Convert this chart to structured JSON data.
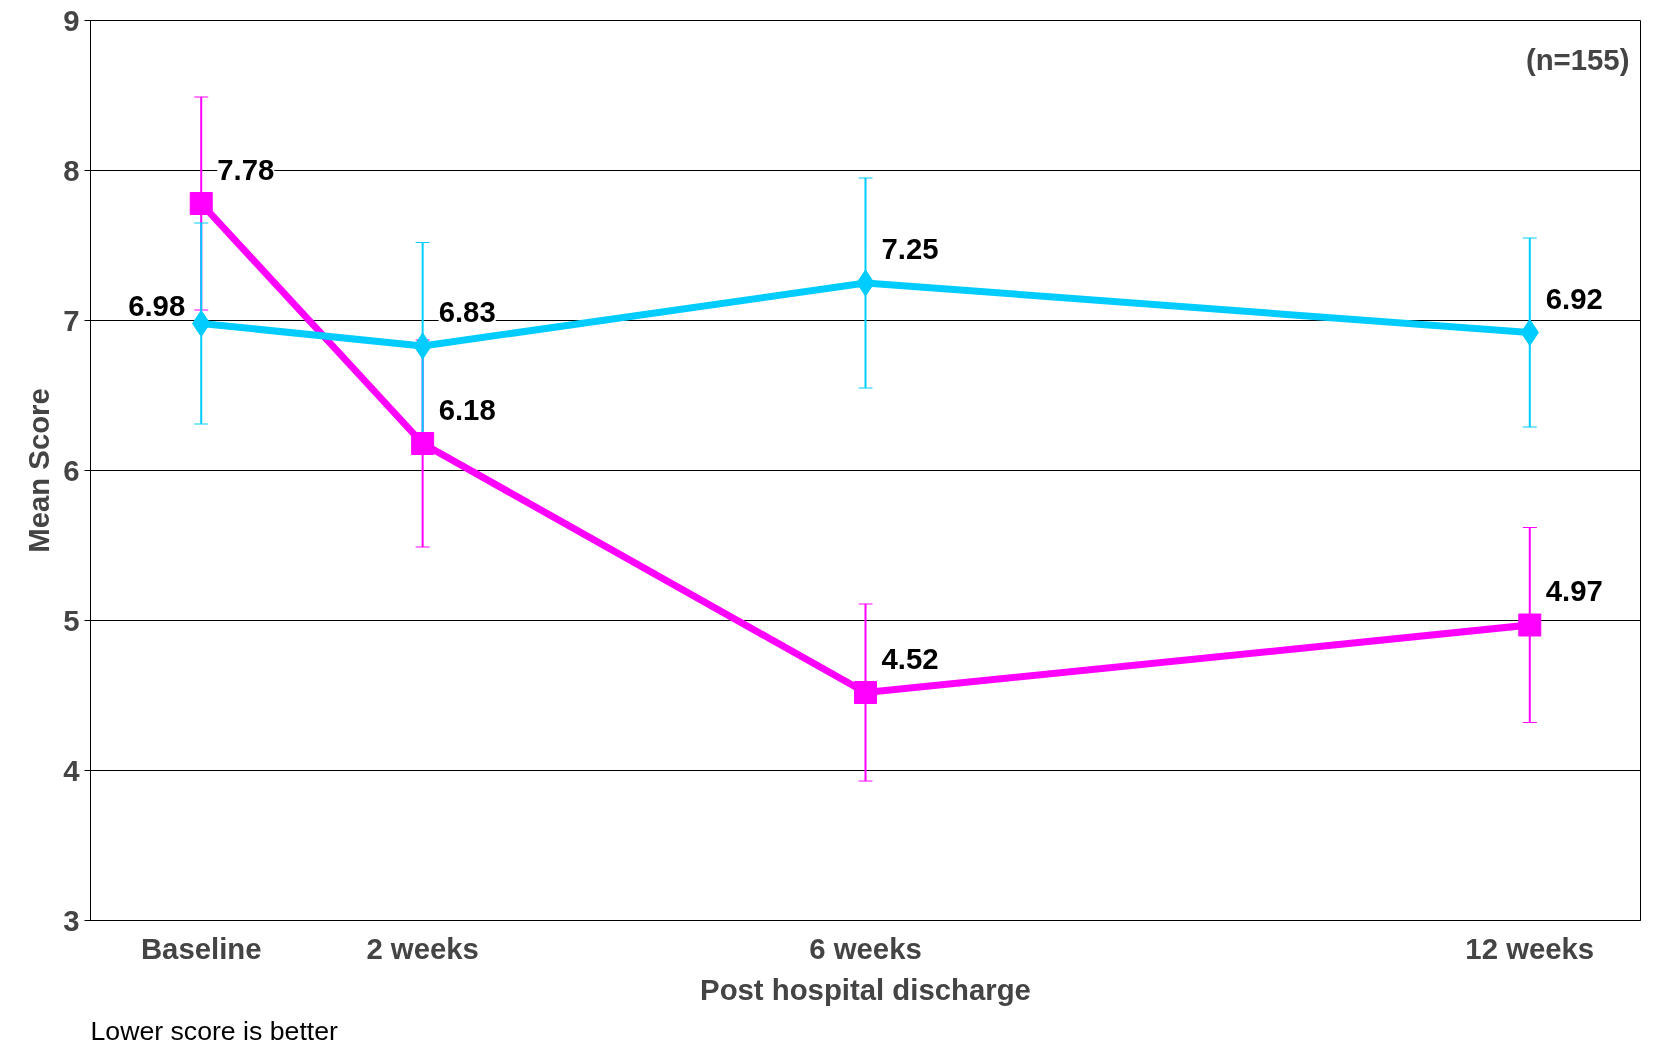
{
  "chart_data": {
    "type": "line",
    "xlabel": "Post hospital discharge",
    "ylabel": "Mean Score",
    "categories": [
      "Baseline",
      "2 weeks",
      null,
      "6 weeks",
      null,
      null,
      "12 weeks"
    ],
    "series": [
      {
        "color": "#ff00ff",
        "marker": "square",
        "values": [
          7.78,
          6.18,
          null,
          4.52,
          null,
          null,
          4.97
        ],
        "errors": [
          0.71,
          0.69,
          null,
          0.59,
          null,
          null,
          0.65
        ]
      },
      {
        "color": "#00ccff",
        "marker": "diamond",
        "values": [
          6.98,
          6.83,
          null,
          7.25,
          null,
          null,
          6.92
        ],
        "errors": [
          0.67,
          0.69,
          null,
          0.7,
          null,
          null,
          0.63
        ]
      }
    ],
    "ylim": [
      3,
      9
    ],
    "yticks": [
      3,
      4,
      5,
      6,
      7,
      8,
      9
    ],
    "grid": "y",
    "data_labels": true,
    "annotations": [
      "(n=155)",
      "Lower score is better"
    ]
  }
}
